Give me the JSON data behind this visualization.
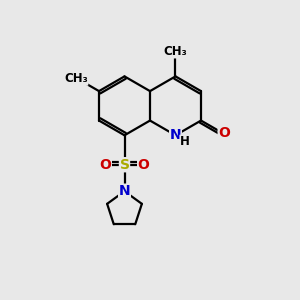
{
  "bg_color": "#e8e8e8",
  "bond_color": "#000000",
  "bond_width": 1.6,
  "atom_colors": {
    "N": "#0000cc",
    "O": "#cc0000",
    "S": "#aaaa00",
    "C": "#000000",
    "H": "#000000"
  },
  "font_size_atom": 10,
  "font_size_small": 8.5,
  "xlim": [
    0,
    10
  ],
  "ylim": [
    0,
    10
  ]
}
